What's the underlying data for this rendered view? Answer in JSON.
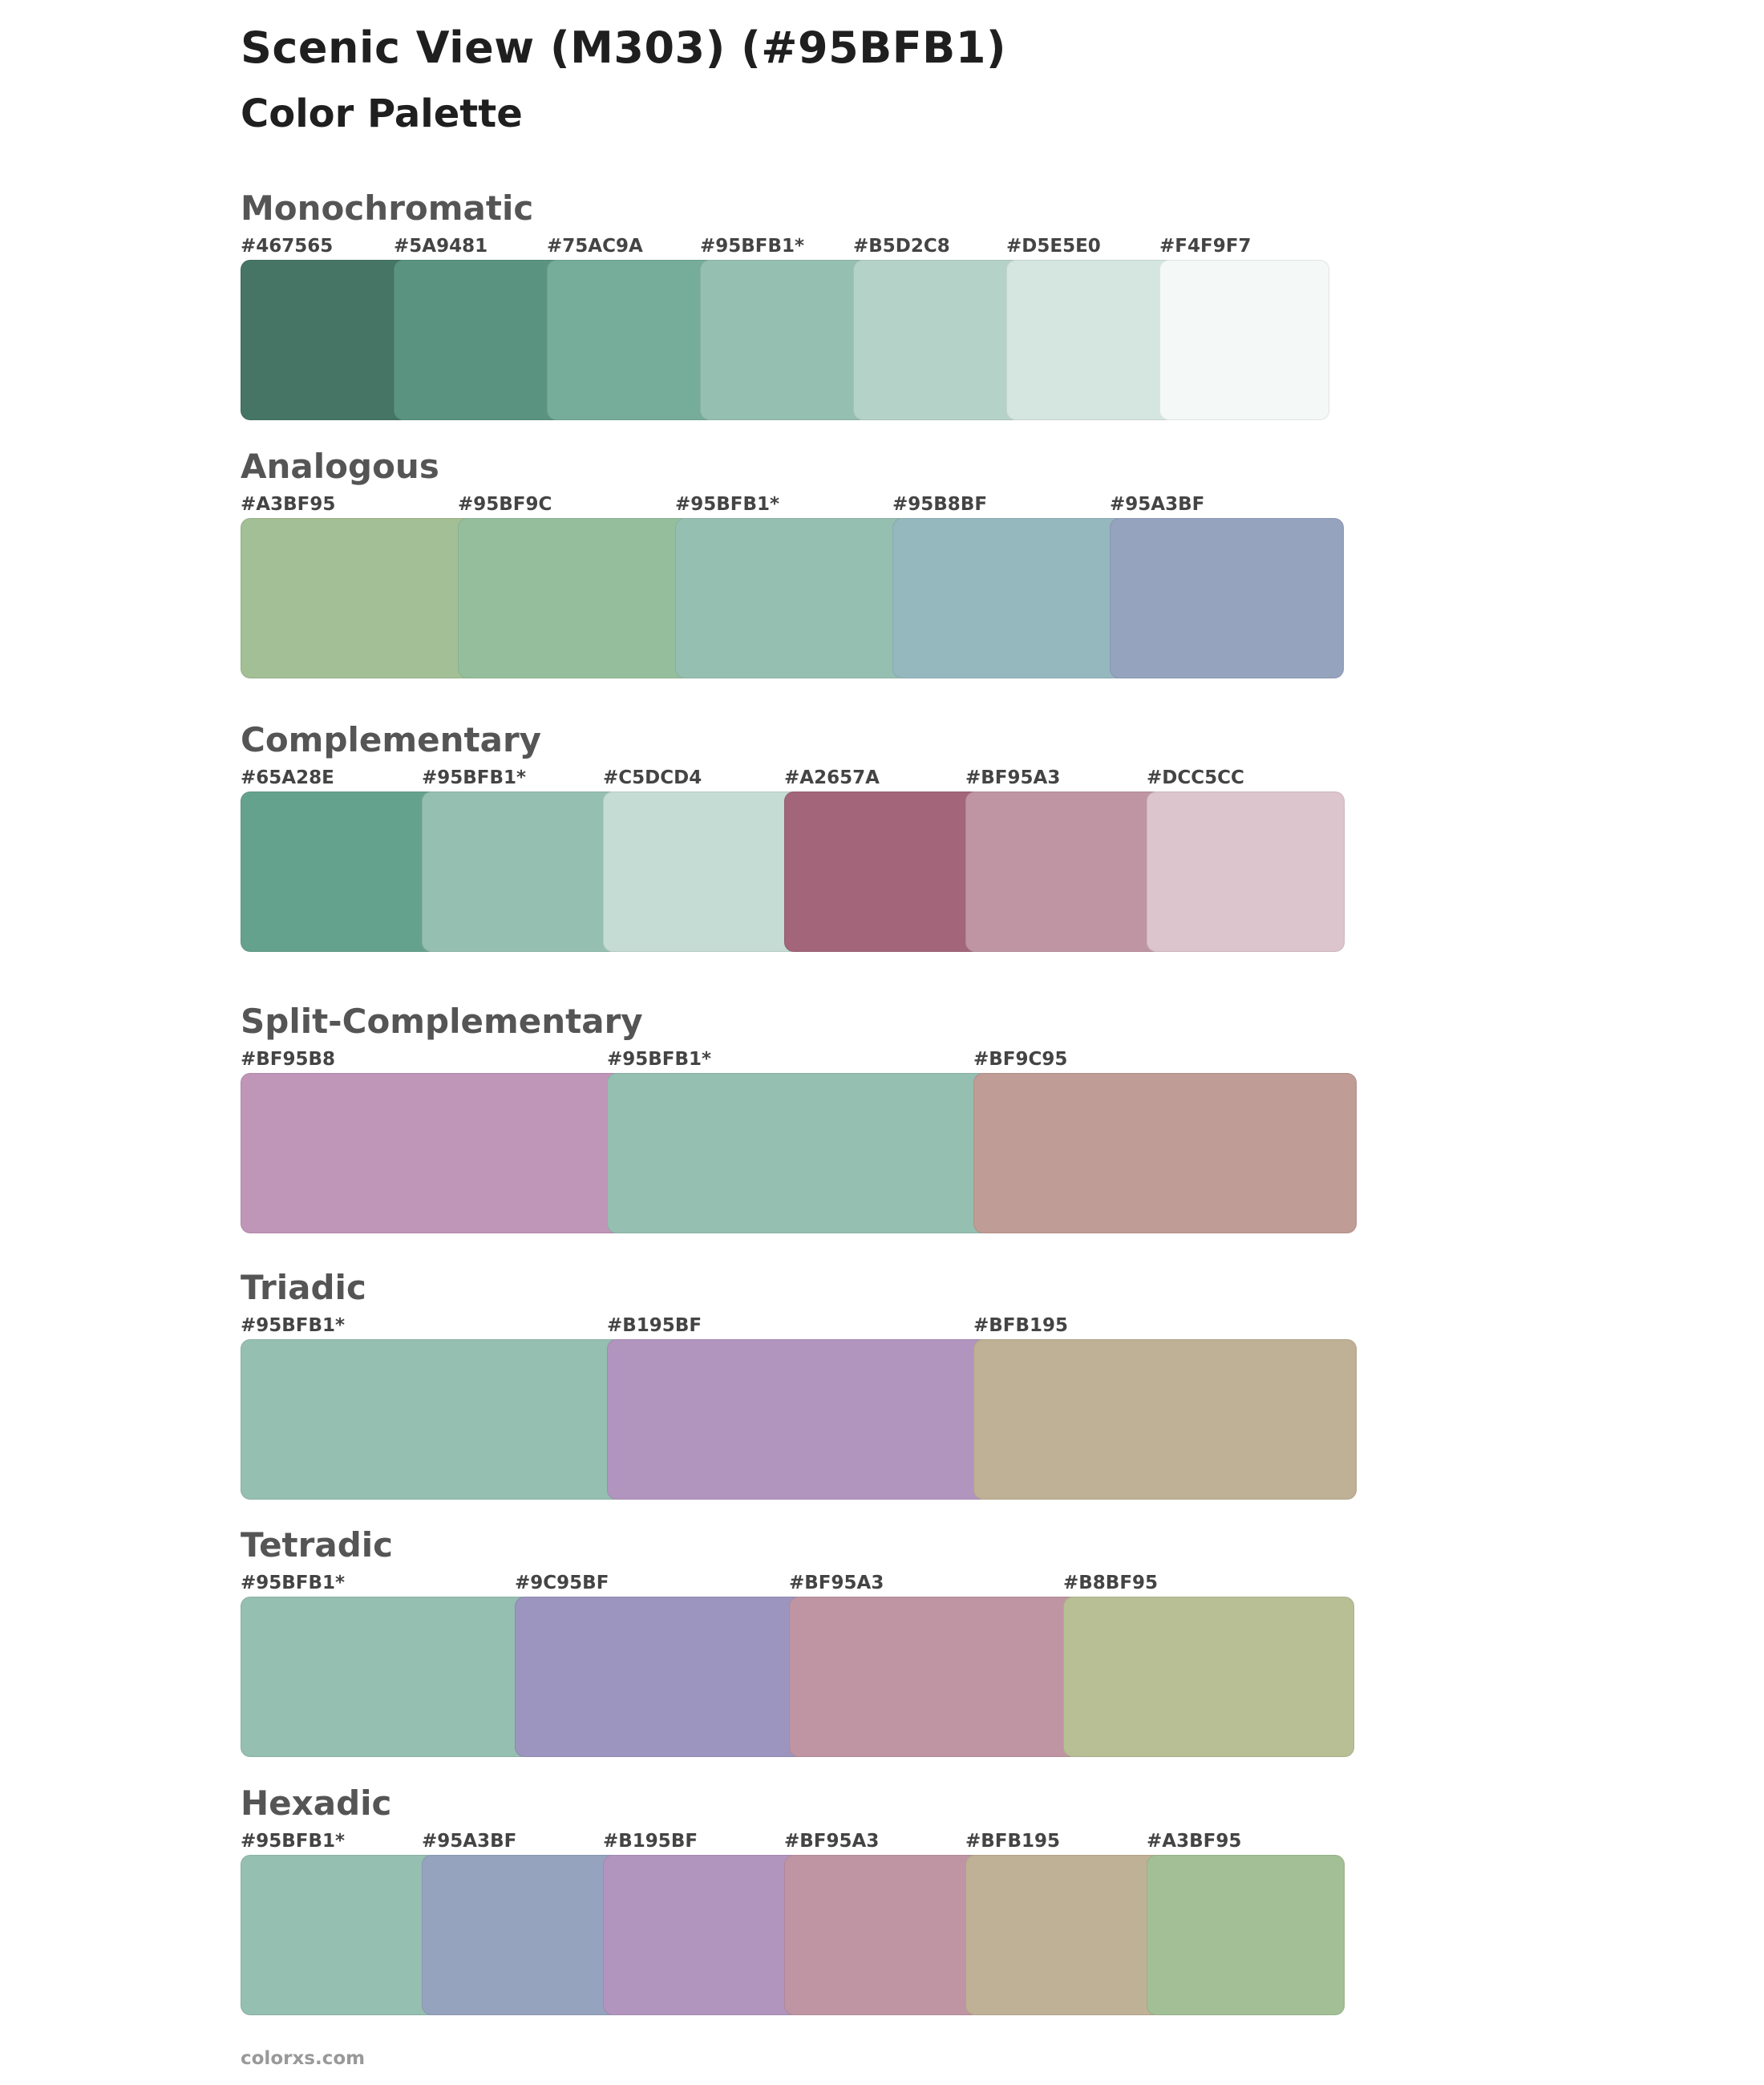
{
  "title": "Scenic View (M303) (#95BFB1)",
  "subtitle": "Color Palette",
  "footer": "colorxs.com",
  "sections": [
    {
      "title": "Monochromatic",
      "colors": [
        {
          "label": "#467565",
          "hex": "#467565"
        },
        {
          "label": "#5A9481",
          "hex": "#5A9481"
        },
        {
          "label": "#75AC9A",
          "hex": "#75AC9A"
        },
        {
          "label": "#95BFB1*",
          "hex": "#95BFB1"
        },
        {
          "label": "#B5D2C8",
          "hex": "#B5D2C8"
        },
        {
          "label": "#D5E5E0",
          "hex": "#D5E5E0"
        },
        {
          "label": "#F4F9F7",
          "hex": "#F4F9F7"
        }
      ]
    },
    {
      "title": "Analogous",
      "colors": [
        {
          "label": "#A3BF95",
          "hex": "#A3BF95"
        },
        {
          "label": "#95BF9C",
          "hex": "#95BF9C"
        },
        {
          "label": "#95BFB1*",
          "hex": "#95BFB1"
        },
        {
          "label": "#95B8BF",
          "hex": "#95B8BF"
        },
        {
          "label": "#95A3BF",
          "hex": "#95A3BF"
        }
      ]
    },
    {
      "title": "Complementary",
      "colors": [
        {
          "label": "#65A28E",
          "hex": "#65A28E"
        },
        {
          "label": "#95BFB1*",
          "hex": "#95BFB1"
        },
        {
          "label": "#C5DCD4",
          "hex": "#C5DCD4"
        },
        {
          "label": "#A2657A",
          "hex": "#A2657A"
        },
        {
          "label": "#BF95A3",
          "hex": "#BF95A3"
        },
        {
          "label": "#DCC5CC",
          "hex": "#DCC5CC"
        }
      ]
    },
    {
      "title": "Split-Complementary",
      "colors": [
        {
          "label": "#BF95B8",
          "hex": "#BF95B8"
        },
        {
          "label": "#95BFB1*",
          "hex": "#95BFB1"
        },
        {
          "label": "#BF9C95",
          "hex": "#BF9C95"
        }
      ]
    },
    {
      "title": "Triadic",
      "colors": [
        {
          "label": "#95BFB1*",
          "hex": "#95BFB1"
        },
        {
          "label": "#B195BF",
          "hex": "#B195BF"
        },
        {
          "label": "#BFB195",
          "hex": "#BFB195"
        }
      ]
    },
    {
      "title": "Tetradic",
      "colors": [
        {
          "label": "#95BFB1*",
          "hex": "#95BFB1"
        },
        {
          "label": "#9C95BF",
          "hex": "#9C95BF"
        },
        {
          "label": "#BF95A3",
          "hex": "#BF95A3"
        },
        {
          "label": "#B8BF95",
          "hex": "#B8BF95"
        }
      ]
    },
    {
      "title": "Hexadic",
      "colors": [
        {
          "label": "#95BFB1*",
          "hex": "#95BFB1"
        },
        {
          "label": "#95A3BF",
          "hex": "#95A3BF"
        },
        {
          "label": "#B195BF",
          "hex": "#B195BF"
        },
        {
          "label": "#BF95A3",
          "hex": "#BF95A3"
        },
        {
          "label": "#BFB195",
          "hex": "#BFB195"
        },
        {
          "label": "#A3BF95",
          "hex": "#A3BF95"
        }
      ]
    }
  ]
}
